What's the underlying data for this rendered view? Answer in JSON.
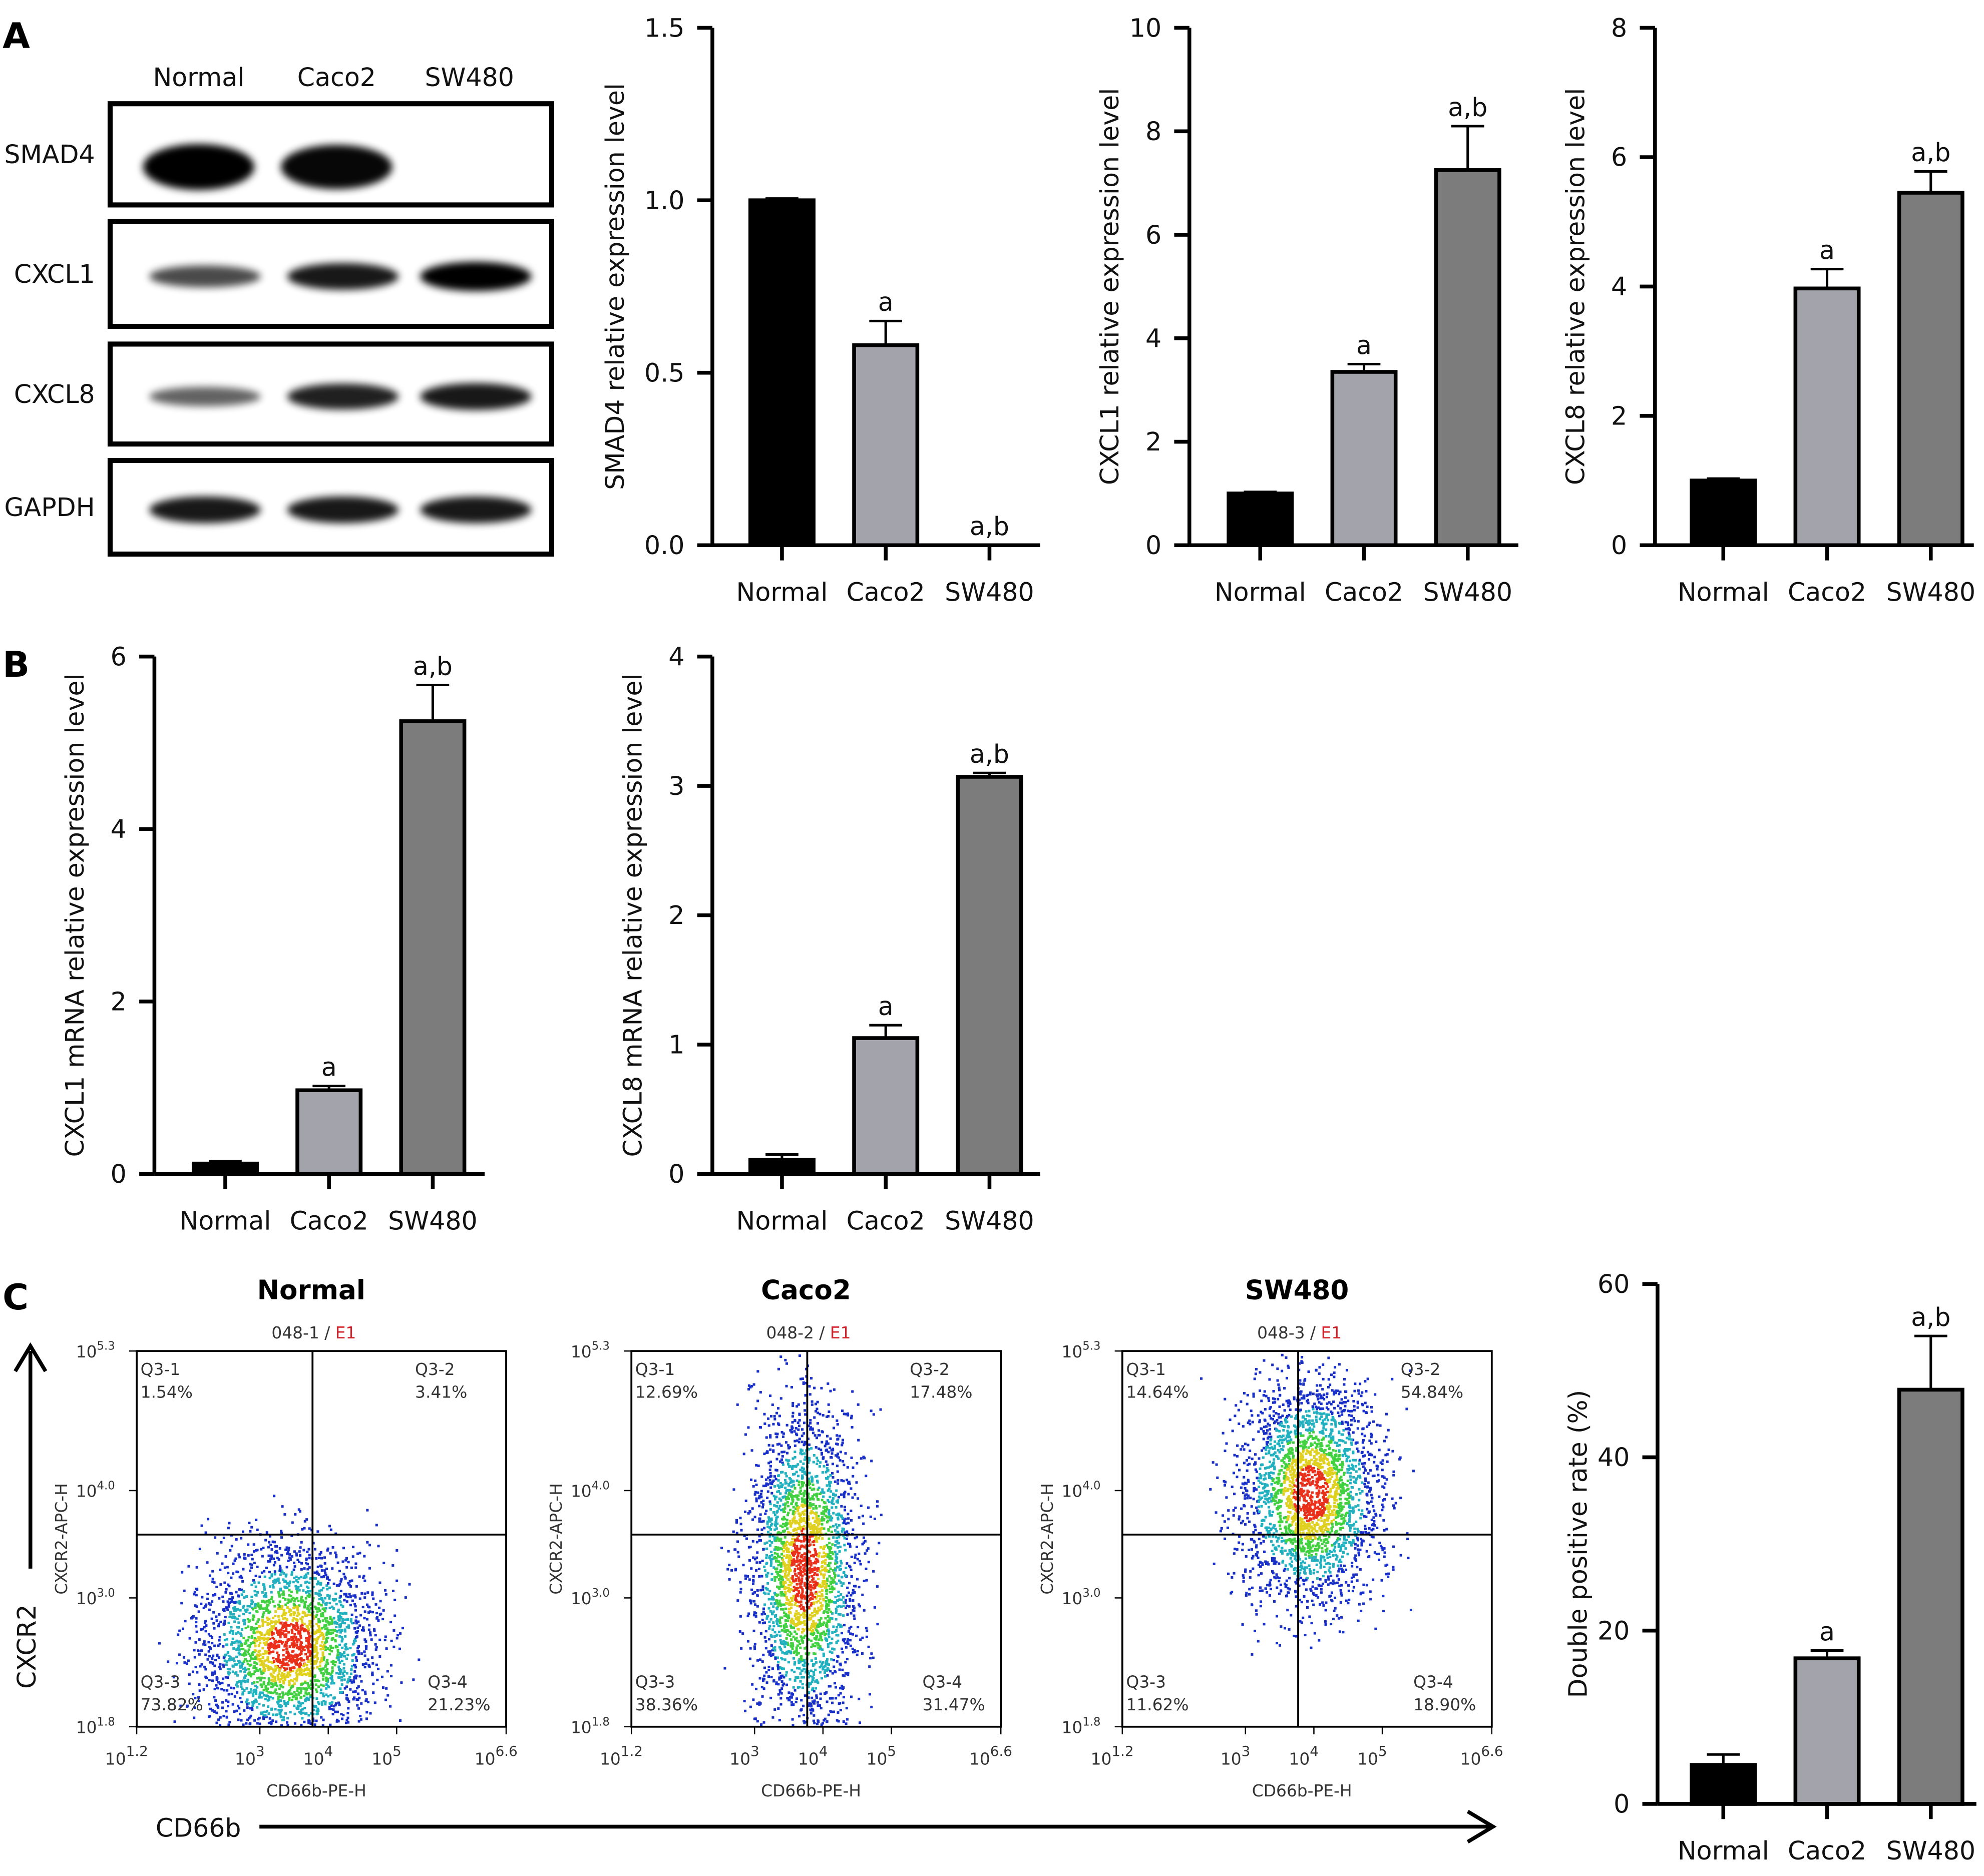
{
  "panels": {
    "a": "A",
    "b": "B",
    "c": "C"
  },
  "colors": {
    "normal": "#000000",
    "caco2": "#a3a3ab",
    "sw480": "#7c7c7c"
  },
  "blot": {
    "lanes": [
      "Normal",
      "Caco2",
      "SW480"
    ],
    "rows": [
      {
        "label": "SMAD4",
        "intensity": [
          1.0,
          0.95,
          0.0
        ]
      },
      {
        "label": "CXCL1",
        "intensity": [
          0.55,
          0.85,
          1.0
        ]
      },
      {
        "label": "CXCL8",
        "intensity": [
          0.4,
          0.8,
          0.85
        ]
      },
      {
        "label": "GAPDH",
        "intensity": [
          0.85,
          0.85,
          0.85
        ]
      }
    ]
  },
  "chart_data": [
    {
      "id": "a1",
      "type": "bar",
      "categories": [
        "Normal",
        "Caco2",
        "SW480"
      ],
      "values": [
        1.0,
        0.58,
        0.0
      ],
      "errors": [
        0.005,
        0.07,
        0
      ],
      "annotations": [
        "",
        "a",
        "a,b"
      ],
      "ylabel": "SMAD4 relative expression level",
      "ylim": [
        0,
        1.5
      ],
      "yticks": [
        "0.0",
        "0.5",
        "1.0",
        "1.5"
      ]
    },
    {
      "id": "a2",
      "type": "bar",
      "categories": [
        "Normal",
        "Caco2",
        "SW480"
      ],
      "values": [
        1.0,
        3.35,
        7.25
      ],
      "errors": [
        0.03,
        0.15,
        0.85
      ],
      "annotations": [
        "",
        "a",
        "a,b"
      ],
      "ylabel": "CXCL1 relative expression level",
      "ylim": [
        0,
        10
      ],
      "yticks": [
        "0",
        "2",
        "4",
        "6",
        "8",
        "10"
      ]
    },
    {
      "id": "a3",
      "type": "bar",
      "categories": [
        "Normal",
        "Caco2",
        "SW480"
      ],
      "values": [
        1.0,
        3.97,
        5.45
      ],
      "errors": [
        0.03,
        0.3,
        0.33
      ],
      "annotations": [
        "",
        "a",
        "a,b"
      ],
      "ylabel": "CXCL8 relative expression level",
      "ylim": [
        0,
        8
      ],
      "yticks": [
        "0",
        "2",
        "4",
        "6",
        "8"
      ]
    },
    {
      "id": "b1",
      "type": "bar",
      "categories": [
        "Normal",
        "Caco2",
        "SW480"
      ],
      "values": [
        0.12,
        0.97,
        5.25
      ],
      "errors": [
        0.03,
        0.05,
        0.42
      ],
      "annotations": [
        "",
        "a",
        "a,b"
      ],
      "ylabel": "CXCL1 mRNA relative expression level",
      "ylim": [
        0,
        6
      ],
      "yticks": [
        "0",
        "2",
        "4",
        "6"
      ]
    },
    {
      "id": "b2",
      "type": "bar",
      "categories": [
        "Normal",
        "Caco2",
        "SW480"
      ],
      "values": [
        0.11,
        1.05,
        3.07
      ],
      "errors": [
        0.04,
        0.1,
        0.03
      ],
      "annotations": [
        "",
        "a",
        "a,b"
      ],
      "ylabel": "CXCL8 mRNA relative expression level",
      "ylim": [
        0,
        4
      ],
      "yticks": [
        "0",
        "1",
        "2",
        "3",
        "4"
      ]
    },
    {
      "id": "c4",
      "type": "bar",
      "categories": [
        "Normal",
        "Caco2",
        "SW480"
      ],
      "values": [
        4.5,
        16.8,
        47.8
      ],
      "errors": [
        1.2,
        0.9,
        6.2
      ],
      "annotations": [
        "",
        "a",
        "a,b"
      ],
      "ylabel": "Double positive rate (%)",
      "ylim": [
        0,
        60
      ],
      "yticks": [
        "0",
        "20",
        "40",
        "60"
      ]
    },
    {
      "id": "flow",
      "type": "scatter",
      "xlabel": "CD66b-PE-H",
      "ylabel": "CXCR2-APC-H",
      "x_tick_exponents": [
        "1.2",
        "3",
        "4",
        "5",
        "6.6"
      ],
      "y_tick_exponents": [
        "5.3",
        "4.0",
        "3.0",
        "1.8"
      ],
      "xlim_log10": [
        1.2,
        6.6
      ],
      "ylim_log10": [
        1.8,
        5.3
      ],
      "gate_log10": [
        3.77,
        3.59
      ],
      "plots": [
        {
          "title": "Normal",
          "sample": "048-1",
          "gate": "E1",
          "quadrants": [
            [
              "Q3-1",
              "1.54%"
            ],
            [
              "Q3-2",
              "3.41%"
            ],
            [
              "Q3-3",
              "73.82%"
            ],
            [
              "Q3-4",
              "21.23%"
            ]
          ]
        },
        {
          "title": "Caco2",
          "sample": "048-2",
          "gate": "E1",
          "quadrants": [
            [
              "Q3-1",
              "12.69%"
            ],
            [
              "Q3-2",
              "17.48%"
            ],
            [
              "Q3-3",
              "38.36%"
            ],
            [
              "Q3-4",
              "31.47%"
            ]
          ]
        },
        {
          "title": "SW480",
          "sample": "048-3",
          "gate": "E1",
          "quadrants": [
            [
              "Q3-1",
              "14.64%"
            ],
            [
              "Q3-2",
              "54.84%"
            ],
            [
              "Q3-3",
              "11.62%"
            ],
            [
              "Q3-4",
              "18.90%"
            ]
          ]
        }
      ]
    }
  ],
  "arrows": {
    "y_label": "CXCR2",
    "x_label": "CD66b"
  }
}
